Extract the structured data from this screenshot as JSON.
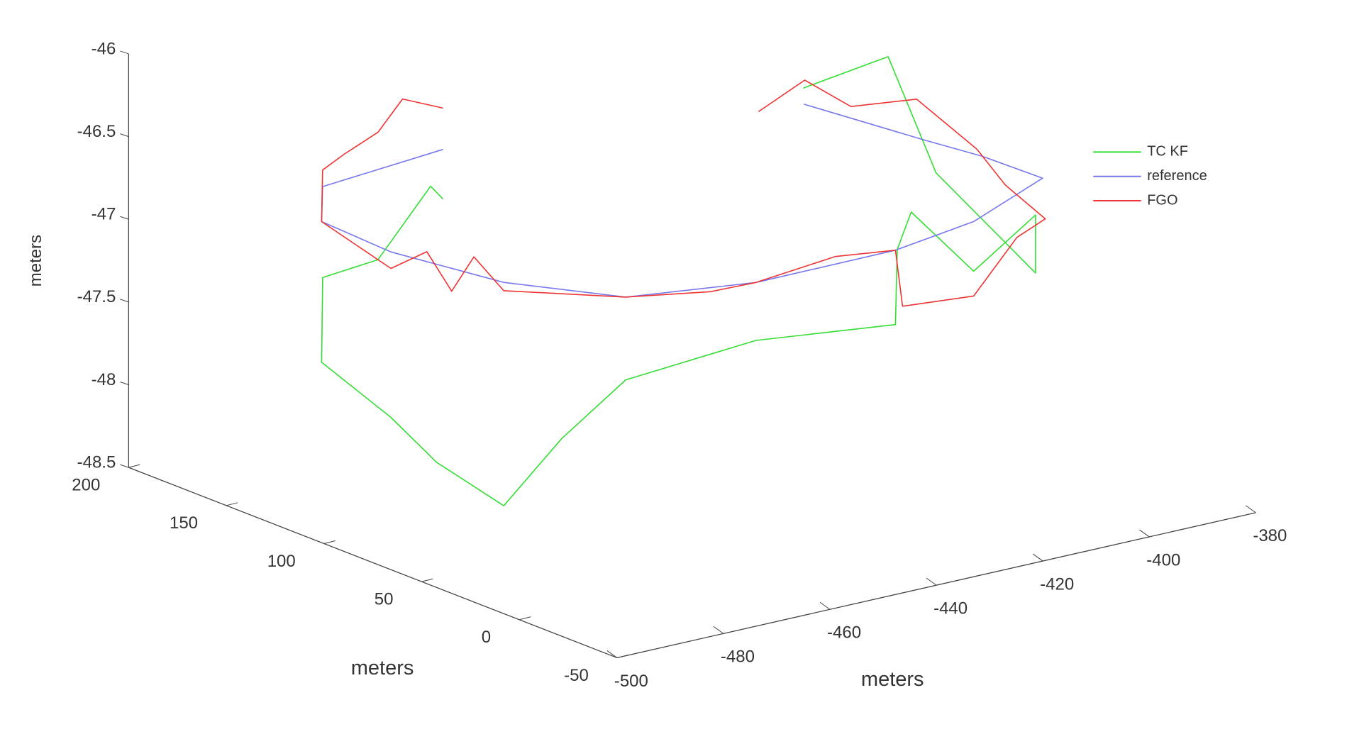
{
  "chart_data": {
    "type": "line3d",
    "xlabel": "meters",
    "ylabel": "meters",
    "zlabel": "meters",
    "xlim": [
      -500,
      -380
    ],
    "ylim": [
      -50,
      200
    ],
    "zlim": [
      -48.5,
      -46
    ],
    "xticks": [
      -500,
      -480,
      -460,
      -440,
      -420,
      -400,
      -380
    ],
    "yticks": [
      -50,
      0,
      50,
      100,
      150,
      200
    ],
    "zticks": [
      -48.5,
      -48,
      -47.5,
      -47,
      -46.5,
      -46
    ],
    "legend_position": "northeast",
    "series": [
      {
        "name": "TC KF",
        "color": "#33dd33",
        "x": [
          -441.4,
          -444,
          -455,
          -467,
          -467,
          -477.8,
          -478.8,
          -477,
          -474.7,
          -470,
          -464.7,
          -444.8,
          -418.4,
          -418,
          -415,
          -400.4,
          -381,
          -381,
          -385,
          -383,
          -385
        ],
        "y": [
          198.7,
          198,
          195,
          190.6,
          190.6,
          161.7,
          123.5,
          105,
          76.9,
          60,
          41.7,
          29.3,
          29.8,
          30,
          31,
          38.8,
          60,
          60,
          100,
          130,
          168
        ],
        "z": [
          -47.3,
          -47.2,
          -47.55,
          -47.55,
          -47.6,
          -47.85,
          -48.0,
          -48.2,
          -48.35,
          -47.9,
          -47.5,
          -47.35,
          -47.45,
          -47.0,
          -46.8,
          -47.3,
          -47.2,
          -47.55,
          -47.1,
          -46.55,
          -46.9
        ]
      },
      {
        "name": "reference",
        "color": "#7777ee",
        "x": [
          -441.4,
          -467,
          -477.8,
          -478.8,
          -474.7,
          -464.7,
          -444.8,
          -418.4,
          -400.4,
          -379,
          -379.5,
          -381.5,
          -384.8
        ],
        "y": [
          198.7,
          190.6,
          161.7,
          123.5,
          76.9,
          41.7,
          29.3,
          29.8,
          38.8,
          61.8,
          91.3,
          117.2,
          168.2
        ],
        "z": [
          -47,
          -47,
          -47,
          -47,
          -47,
          -47,
          -47,
          -47,
          -47,
          -47,
          -47,
          -47,
          -47
        ]
      },
      {
        "name": "FGO",
        "color": "#ee3333",
        "x": [
          -441.4,
          -450,
          -455,
          -462,
          -467,
          -477.8,
          -478.8,
          -477,
          -476,
          -475.5,
          -474.7,
          -464.7,
          -452,
          -444.8,
          -430,
          -418.4,
          -417,
          -400.4,
          -390,
          -381,
          -383,
          -380.5,
          -385,
          -390,
          -395,
          -400
        ],
        "y": [
          198.7,
          196,
          195,
          193,
          190.6,
          161.7,
          123.5,
          110,
          100,
          90,
          76.9,
          41.7,
          33,
          29.3,
          29,
          29.8,
          30,
          38.8,
          45,
          55,
          70,
          91.3,
          110,
          130,
          140,
          150
        ],
        "z": [
          -46.75,
          -46.62,
          -46.78,
          -46.85,
          -46.9,
          -47.0,
          -47.1,
          -46.95,
          -47.15,
          -46.9,
          -47.05,
          -47.0,
          -47.02,
          -47.0,
          -46.95,
          -47.0,
          -47.35,
          -47.45,
          -47.2,
          -47.2,
          -47.05,
          -46.95,
          -46.7,
          -46.8,
          -46.65,
          -46.85
        ]
      }
    ]
  }
}
